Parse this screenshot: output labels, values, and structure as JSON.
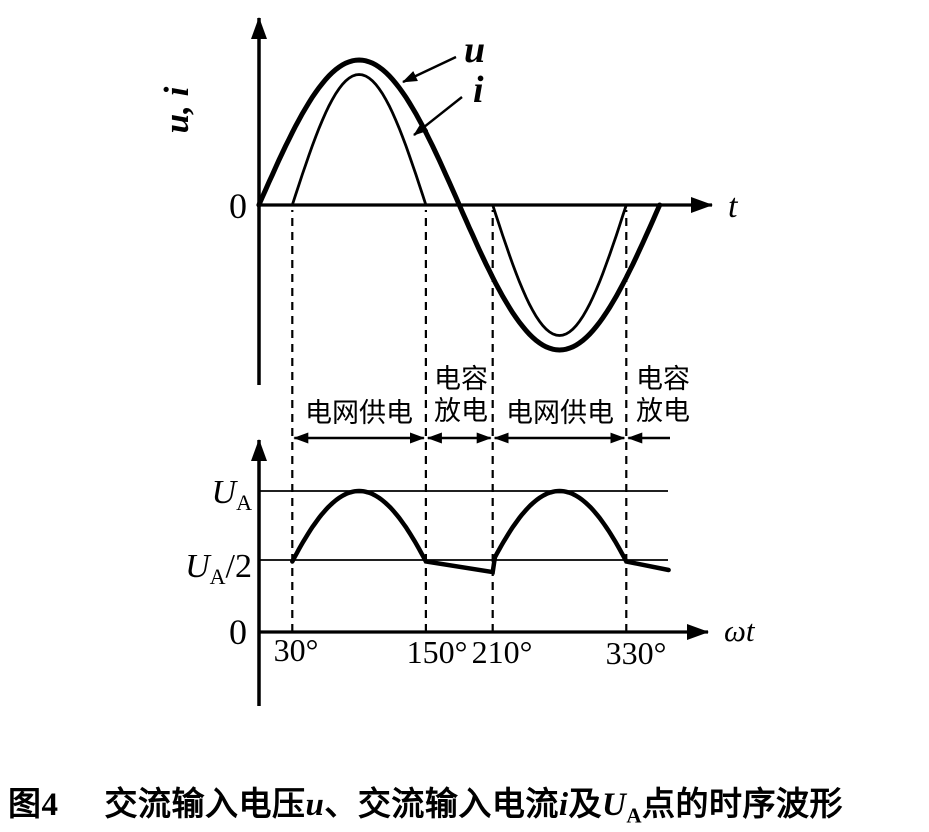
{
  "figure": {
    "top_plot": {
      "ylabel": "u, i",
      "origin_label": "0",
      "xlabel": "t",
      "curve_u_label": "u",
      "curve_i_label": "i"
    },
    "bands": {
      "items": [
        {
          "line1": "电网供电",
          "line2": "",
          "from_deg": 30,
          "to_deg": 150
        },
        {
          "line1": "电容",
          "line2": "放电",
          "from_deg": 150,
          "to_deg": 210
        },
        {
          "line1": "电网供电",
          "line2": "",
          "from_deg": 210,
          "to_deg": 330
        },
        {
          "line1": "电容",
          "line2": "放电",
          "from_deg": 330,
          "to_deg": null
        }
      ]
    },
    "bottom_plot": {
      "y_tick_ua": {
        "base": "U",
        "sub": "A"
      },
      "y_tick_half": {
        "base": "U",
        "sub": "A",
        "suffix": "/2"
      },
      "origin_label": "0",
      "xlabel": "ωt",
      "x_ticks": [
        "30°",
        "150°",
        "210°",
        "330°"
      ]
    },
    "caption": {
      "prefix": "图4",
      "part1": "交流输入电压",
      "var_u": "u",
      "part2": "、交流输入电流",
      "var_i": "i",
      "part3": "及",
      "var_U": "U",
      "sub_A": "A",
      "part4": "点的时序波形"
    }
  },
  "chart_data": [
    {
      "type": "line",
      "title": "AC input voltage u and current i vs t",
      "xlabel": "t",
      "ylabel": "u, i",
      "x_unit": "deg",
      "series": [
        {
          "name": "u",
          "waveform": "sine",
          "range_deg": [
            0,
            360
          ],
          "peak_rel": 1.0
        },
        {
          "name": "i",
          "waveform": "half-sine-pulses",
          "pulses_deg": [
            [
              30,
              150
            ],
            [
              210,
              330
            ]
          ],
          "peak_rel": 0.9
        }
      ],
      "guides_deg": [
        30,
        150,
        210,
        330
      ],
      "grid": false,
      "legend": "arrow annotations u and i"
    },
    {
      "type": "line",
      "title": "Voltage at point A vs ωt",
      "xlabel": "ωt",
      "y_ticks": [
        "U_A",
        "U_A/2",
        "0"
      ],
      "y_ref_levels_rel": [
        1.0,
        0.5
      ],
      "x_ticks_deg": [
        30,
        150,
        210,
        330
      ],
      "x_tick_labels": [
        "30°",
        "150°",
        "210°",
        "330°"
      ],
      "series": [
        {
          "name": "U_A point waveform",
          "segments": [
            {
              "type": "arch",
              "from_deg": 30,
              "to_deg": 150,
              "min_rel": 0.5,
              "peak_rel": 1.0
            },
            {
              "type": "discharge",
              "from_deg": 150,
              "to_deg": 210,
              "from_rel": 0.5,
              "to_rel": 0.425
            },
            {
              "type": "arch",
              "from_deg": 210,
              "to_deg": 330,
              "min_rel": 0.5,
              "peak_rel": 1.0,
              "start_rel": 0.425
            },
            {
              "type": "discharge",
              "from_deg": 330,
              "to_deg": 368,
              "from_rel": 0.5,
              "to_rel": 0.44
            }
          ]
        }
      ],
      "intervals": [
        {
          "label": "电网供电",
          "from_deg": 30,
          "to_deg": 150
        },
        {
          "label": "电容放电",
          "from_deg": 150,
          "to_deg": 210
        },
        {
          "label": "电网供电",
          "from_deg": 210,
          "to_deg": 330
        },
        {
          "label": "电容放电",
          "from_deg": 330,
          "to_deg": null
        }
      ]
    }
  ],
  "colors": {
    "ink": "#000000",
    "background": "#ffffff"
  }
}
